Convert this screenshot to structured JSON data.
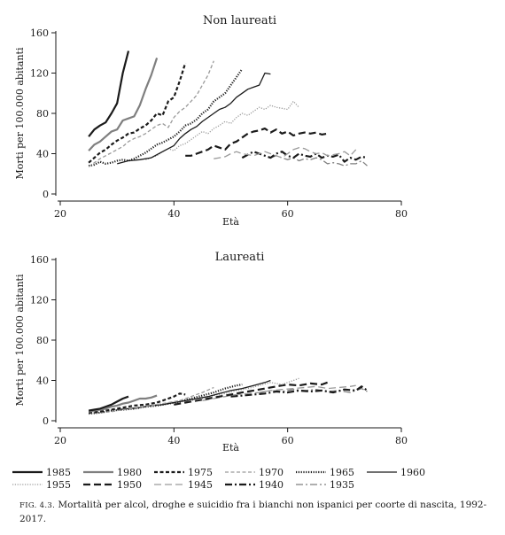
{
  "figure": {
    "caption_number": "FIG. 4.3.",
    "caption_text": "Mortalità per alcol, droghe e suicidio fra i bianchi non ispanici per coorte di nascita, 1992-2017."
  },
  "style": {
    "ink": "#1a1a1a",
    "gray": "#7f7f7f",
    "light_gray": "#9a9a9a"
  },
  "legend": {
    "items": [
      {
        "label": "1985",
        "color": "#1a1a1a",
        "dash": "solid",
        "weight": "thick"
      },
      {
        "label": "1980",
        "color": "#7f7f7f",
        "dash": "solid",
        "weight": "thick"
      },
      {
        "label": "1975",
        "color": "#1a1a1a",
        "dash": "short-dash",
        "weight": "thick"
      },
      {
        "label": "1970",
        "color": "#9a9a9a",
        "dash": "short-dash",
        "weight": "thin"
      },
      {
        "label": "1965",
        "color": "#1a1a1a",
        "dash": "dot",
        "weight": "thick"
      },
      {
        "label": "1960",
        "color": "#1a1a1a",
        "dash": "solid",
        "weight": "thin"
      },
      {
        "label": "1955",
        "color": "#9a9a9a",
        "dash": "dot",
        "weight": "thin"
      },
      {
        "label": "1950",
        "color": "#1a1a1a",
        "dash": "long-dash",
        "weight": "thick"
      },
      {
        "label": "1945",
        "color": "#9a9a9a",
        "dash": "long-dash",
        "weight": "thin"
      },
      {
        "label": "1940",
        "color": "#1a1a1a",
        "dash": "dash-dot",
        "weight": "thick"
      },
      {
        "label": "1935",
        "color": "#7f7f7f",
        "dash": "dash-dot",
        "weight": "thin"
      }
    ]
  },
  "chart_data": [
    {
      "type": "line",
      "title": "Non laureati",
      "xlabel": "Età",
      "ylabel": "Morti per 100.000 abitanti",
      "xlim": [
        20,
        80
      ],
      "ylim": [
        0,
        160
      ],
      "xticks": [
        20,
        40,
        60,
        80
      ],
      "yticks": [
        0,
        40,
        80,
        120,
        160
      ],
      "grid": false,
      "series": [
        {
          "name": "1985",
          "x": [
            25,
            26,
            27,
            28,
            29,
            30,
            31,
            32
          ],
          "y": [
            57,
            64,
            68,
            71,
            80,
            90,
            120,
            142
          ]
        },
        {
          "name": "1980",
          "x": [
            25,
            26,
            27,
            28,
            29,
            30,
            31,
            32,
            33,
            34,
            35,
            36,
            37
          ],
          "y": [
            43,
            49,
            52,
            57,
            62,
            64,
            73,
            75,
            77,
            88,
            104,
            118,
            135
          ]
        },
        {
          "name": "1975",
          "x": [
            25,
            26,
            27,
            28,
            29,
            30,
            31,
            32,
            33,
            34,
            35,
            36,
            37,
            38,
            39,
            40,
            41,
            42
          ],
          "y": [
            31,
            36,
            41,
            44,
            49,
            53,
            56,
            60,
            61,
            65,
            68,
            73,
            80,
            78,
            92,
            96,
            112,
            130
          ]
        },
        {
          "name": "1970",
          "x": [
            25,
            26,
            27,
            28,
            29,
            30,
            31,
            32,
            33,
            34,
            35,
            36,
            37,
            38,
            39,
            40,
            41,
            42,
            43,
            44,
            45,
            46,
            47
          ],
          "y": [
            27,
            31,
            35,
            38,
            41,
            44,
            47,
            52,
            55,
            57,
            60,
            64,
            68,
            70,
            66,
            76,
            82,
            86,
            92,
            98,
            108,
            118,
            132
          ]
        },
        {
          "name": "1965",
          "x": [
            25,
            26,
            27,
            28,
            29,
            30,
            31,
            32,
            33,
            34,
            35,
            36,
            37,
            38,
            39,
            40,
            41,
            42,
            43,
            44,
            45,
            46,
            47,
            48,
            49,
            50,
            51,
            52
          ],
          "y": [
            28,
            29,
            32,
            30,
            31,
            33,
            34,
            33,
            35,
            38,
            41,
            45,
            49,
            51,
            54,
            57,
            62,
            68,
            70,
            74,
            80,
            84,
            92,
            96,
            100,
            108,
            116,
            124
          ]
        },
        {
          "name": "1960",
          "x": [
            30,
            32,
            34,
            36,
            38,
            40,
            41,
            42,
            43,
            44,
            45,
            46,
            47,
            48,
            49,
            50,
            51,
            52,
            53,
            54,
            55,
            56,
            57
          ],
          "y": [
            30,
            33,
            34,
            36,
            42,
            48,
            55,
            60,
            64,
            67,
            72,
            76,
            80,
            84,
            86,
            90,
            96,
            100,
            104,
            106,
            108,
            120,
            119
          ]
        },
        {
          "name": "1955",
          "x": [
            35,
            36,
            37,
            38,
            39,
            40,
            41,
            42,
            43,
            44,
            45,
            46,
            47,
            48,
            49,
            50,
            51,
            52,
            53,
            54,
            55,
            56,
            57,
            58,
            59,
            60,
            61,
            62
          ],
          "y": [
            34,
            36,
            38,
            42,
            45,
            43,
            48,
            50,
            54,
            58,
            62,
            60,
            65,
            68,
            72,
            70,
            76,
            80,
            78,
            82,
            86,
            84,
            88,
            86,
            85,
            84,
            92,
            86
          ]
        },
        {
          "name": "1950",
          "x": [
            42,
            43,
            44,
            45,
            46,
            47,
            48,
            49,
            50,
            51,
            52,
            53,
            54,
            55,
            56,
            57,
            58,
            59,
            60,
            61,
            62,
            63,
            64,
            65,
            66,
            67
          ],
          "y": [
            38,
            38,
            40,
            42,
            44,
            48,
            46,
            44,
            50,
            52,
            56,
            60,
            62,
            63,
            65,
            61,
            64,
            60,
            62,
            58,
            60,
            61,
            60,
            61,
            59,
            60
          ]
        },
        {
          "name": "1945",
          "x": [
            47,
            48,
            49,
            50,
            51,
            52,
            53,
            54,
            55,
            56,
            57,
            58,
            59,
            60,
            61,
            62,
            63,
            64,
            65,
            66,
            67,
            68,
            69,
            70,
            71,
            72
          ],
          "y": [
            35,
            36,
            37,
            40,
            42,
            40,
            39,
            38,
            40,
            42,
            40,
            38,
            36,
            40,
            44,
            46,
            45,
            42,
            40,
            41,
            38,
            39,
            40,
            42,
            38,
            44
          ]
        },
        {
          "name": "1940",
          "x": [
            52,
            53,
            54,
            55,
            56,
            57,
            58,
            59,
            60,
            61,
            62,
            63,
            64,
            65,
            66,
            67,
            68,
            69,
            70,
            71,
            72,
            73,
            74
          ],
          "y": [
            36,
            39,
            42,
            40,
            38,
            36,
            40,
            42,
            38,
            36,
            40,
            38,
            37,
            40,
            36,
            38,
            37,
            39,
            32,
            36,
            34,
            37,
            36
          ]
        },
        {
          "name": "1935",
          "x": [
            57,
            58,
            59,
            60,
            61,
            62,
            63,
            64,
            65,
            66,
            67,
            68,
            69,
            70,
            71,
            72,
            73,
            74
          ],
          "y": [
            36,
            38,
            36,
            34,
            36,
            33,
            35,
            34,
            36,
            34,
            30,
            31,
            30,
            28,
            30,
            30,
            33,
            28
          ]
        }
      ]
    },
    {
      "type": "line",
      "title": "Laureati",
      "xlabel": "Età",
      "ylabel": "Morti per 100.000 abitanti",
      "xlim": [
        20,
        80
      ],
      "ylim": [
        0,
        160
      ],
      "xticks": [
        20,
        40,
        60,
        80
      ],
      "yticks": [
        0,
        40,
        80,
        120,
        160
      ],
      "grid": false,
      "series": [
        {
          "name": "1985",
          "x": [
            25,
            26,
            27,
            28,
            29,
            30,
            31,
            32
          ],
          "y": [
            10,
            11,
            12,
            14,
            16,
            19,
            22,
            24
          ]
        },
        {
          "name": "1980",
          "x": [
            25,
            26,
            27,
            28,
            29,
            30,
            31,
            32,
            33,
            34,
            35,
            36,
            37
          ],
          "y": [
            9,
            10,
            11,
            12,
            14,
            15,
            17,
            18,
            20,
            22,
            22,
            23,
            25
          ]
        },
        {
          "name": "1975",
          "x": [
            25,
            27,
            29,
            31,
            33,
            35,
            37,
            38,
            39,
            40,
            41,
            42
          ],
          "y": [
            8,
            9,
            11,
            13,
            15,
            16,
            18,
            20,
            22,
            24,
            27,
            26
          ]
        },
        {
          "name": "1970",
          "x": [
            25,
            27,
            29,
            31,
            33,
            35,
            37,
            39,
            41,
            43,
            45,
            47
          ],
          "y": [
            7,
            8,
            9,
            11,
            12,
            14,
            16,
            18,
            20,
            24,
            28,
            33
          ]
        },
        {
          "name": "1965",
          "x": [
            25,
            27,
            29,
            31,
            33,
            35,
            37,
            39,
            41,
            43,
            45,
            47,
            49,
            51,
            52
          ],
          "y": [
            7,
            8,
            10,
            11,
            12,
            14,
            15,
            17,
            19,
            22,
            25,
            28,
            32,
            35,
            36
          ]
        },
        {
          "name": "1960",
          "x": [
            30,
            32,
            34,
            36,
            38,
            40,
            42,
            44,
            46,
            48,
            50,
            52,
            54,
            56,
            57
          ],
          "y": [
            11,
            12,
            13,
            15,
            16,
            18,
            20,
            22,
            24,
            27,
            30,
            32,
            35,
            38,
            40
          ]
        },
        {
          "name": "1955",
          "x": [
            35,
            37,
            39,
            41,
            43,
            45,
            47,
            49,
            51,
            53,
            55,
            57,
            59,
            61,
            62
          ],
          "y": [
            14,
            16,
            17,
            19,
            20,
            22,
            25,
            27,
            30,
            32,
            35,
            38,
            36,
            40,
            42
          ]
        },
        {
          "name": "1950",
          "x": [
            40,
            42,
            44,
            46,
            48,
            50,
            52,
            54,
            56,
            58,
            60,
            62,
            64,
            66,
            67
          ],
          "y": [
            16,
            18,
            20,
            22,
            24,
            26,
            28,
            30,
            32,
            34,
            36,
            35,
            37,
            36,
            38
          ]
        },
        {
          "name": "1945",
          "x": [
            45,
            47,
            49,
            51,
            53,
            55,
            57,
            59,
            61,
            63,
            65,
            67,
            69,
            71,
            72
          ],
          "y": [
            20,
            22,
            24,
            26,
            27,
            28,
            30,
            31,
            32,
            33,
            34,
            32,
            33,
            34,
            35
          ]
        },
        {
          "name": "1940",
          "x": [
            50,
            52,
            54,
            56,
            58,
            60,
            62,
            64,
            66,
            68,
            70,
            72,
            73,
            74
          ],
          "y": [
            24,
            25,
            26,
            27,
            29,
            28,
            30,
            29,
            30,
            28,
            31,
            30,
            34,
            30
          ]
        },
        {
          "name": "1935",
          "x": [
            55,
            57,
            59,
            61,
            63,
            65,
            67,
            69,
            71,
            72,
            73,
            74
          ],
          "y": [
            28,
            30,
            29,
            31,
            30,
            31,
            29,
            30,
            28,
            30,
            32,
            29
          ]
        }
      ]
    }
  ]
}
